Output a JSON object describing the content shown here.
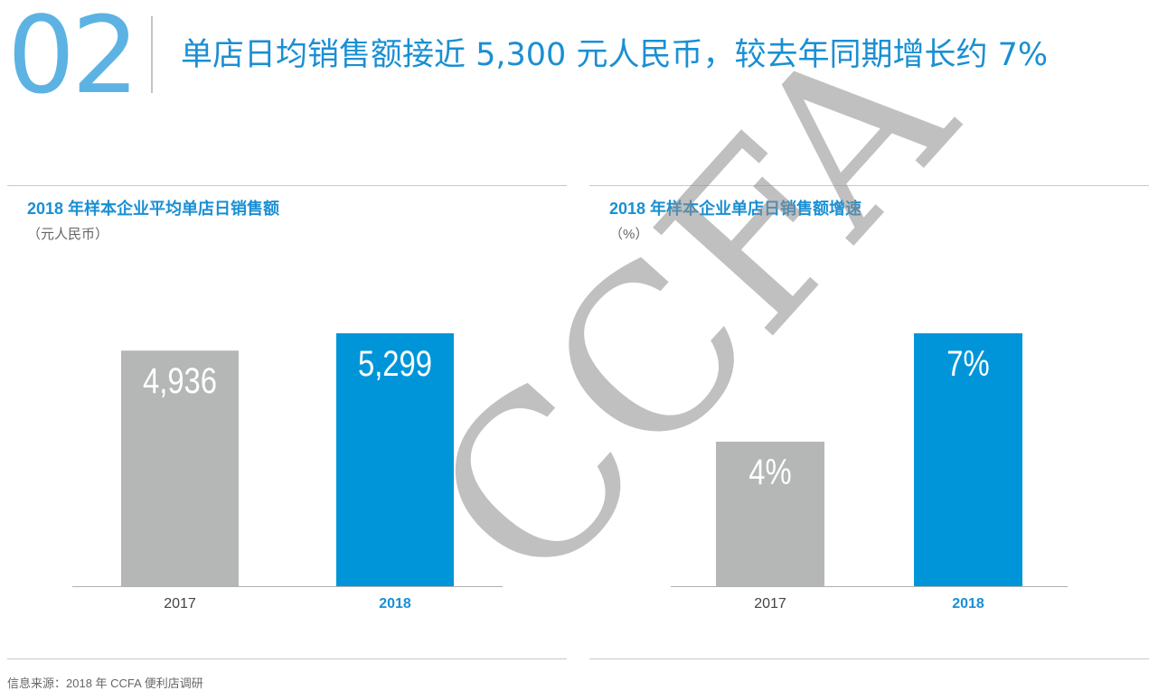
{
  "header": {
    "section_number": "02",
    "title": "单店日均销售额接近 5,300 元人民币，较去年同期增长约 7%"
  },
  "charts": [
    {
      "title": "2018 年样本企业平均单店日销售额",
      "unit": "（元人民币）"
    },
    {
      "title": "2018 年样本企业单店日销售额增速",
      "unit": "（%）"
    }
  ],
  "chart_data": [
    {
      "type": "bar",
      "title": "2018 年样本企业平均单店日销售额",
      "unit": "元人民币",
      "categories": [
        "2017",
        "2018"
      ],
      "values": [
        4936,
        5299
      ],
      "labels": [
        "4,936",
        "5,299"
      ],
      "colors": [
        "#b5b6b6",
        "#0095d9"
      ],
      "ylim": [
        0,
        5299
      ],
      "grid": false,
      "legend": "none"
    },
    {
      "type": "bar",
      "title": "2018 年样本企业单店日销售额增速",
      "unit": "%",
      "categories": [
        "2017",
        "2018"
      ],
      "values": [
        4,
        7
      ],
      "labels": [
        "4%",
        "7%"
      ],
      "colors": [
        "#b5b6b6",
        "#0095d9"
      ],
      "ylim": [
        0,
        7
      ],
      "grid": false,
      "legend": "none"
    }
  ],
  "styles": {
    "accent": "#1a8fd3",
    "bar_2017": "#b5b6b6",
    "bar_2018": "#0095d9",
    "category_highlight": "#1a8fd3",
    "category_normal": "#444444",
    "watermark_color": "#8c8c8c"
  },
  "watermark": "CCFA",
  "footer": {
    "source": "信息来源：2018 年 CCFA 便利店调研"
  }
}
